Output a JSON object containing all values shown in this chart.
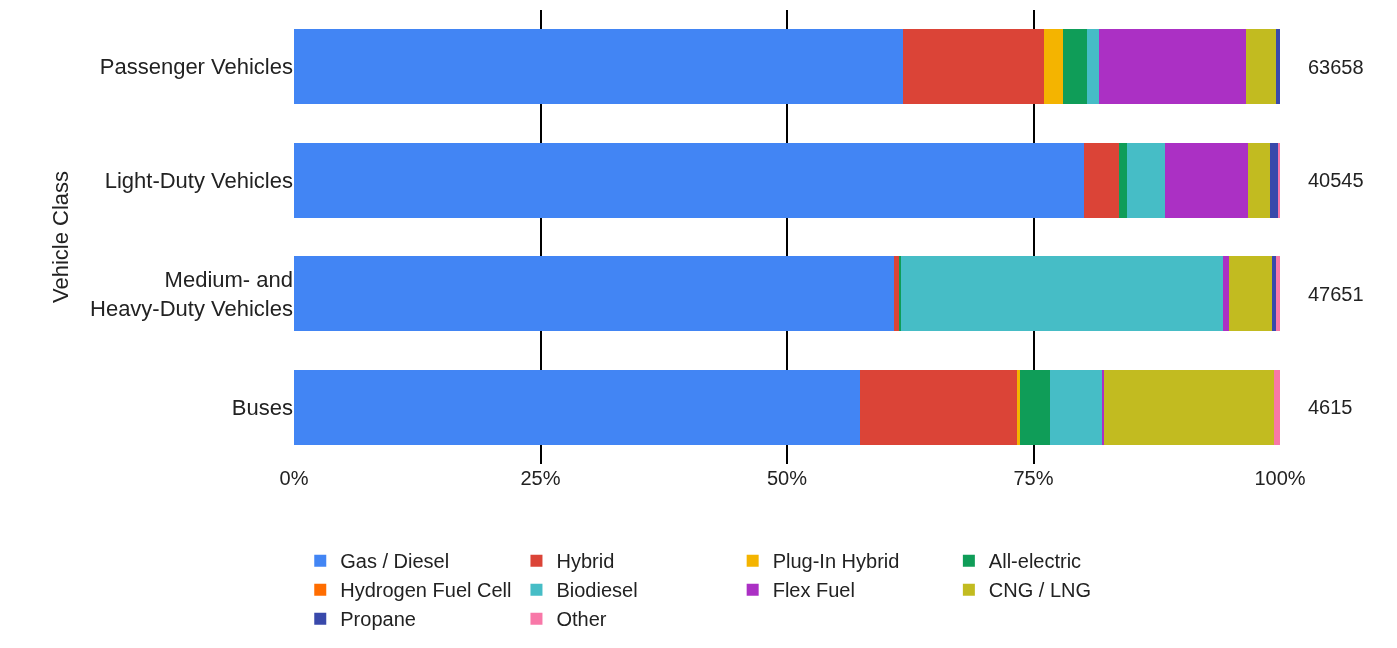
{
  "chart_data": {
    "type": "bar",
    "orientation": "horizontal",
    "stacked": true,
    "ylabel": "Vehicle Class",
    "categories": [
      "Passenger Vehicles",
      "Light-Duty Vehicles",
      "Medium- and Heavy-Duty Vehicles",
      "Buses"
    ],
    "series": [
      {
        "name": "Gas / Diesel",
        "color": "#4285f4",
        "values": [
          61.8,
          80.1,
          60.9,
          57.4
        ]
      },
      {
        "name": "Hybrid",
        "color": "#db4437",
        "values": [
          14.3,
          3.6,
          0.5,
          16.0
        ]
      },
      {
        "name": "Plug-In Hybrid",
        "color": "#f4b400",
        "values": [
          1.9,
          0,
          0,
          0.2
        ]
      },
      {
        "name": "All-electric",
        "color": "#0f9d58",
        "values": [
          2.4,
          0.8,
          0.2,
          3.1
        ]
      },
      {
        "name": "Hydrogen Fuel Cell",
        "color": "#ff6d00",
        "values": [
          0,
          0,
          0,
          0
        ]
      },
      {
        "name": "Biodiesel",
        "color": "#46bdc6",
        "values": [
          1.2,
          3.8,
          32.6,
          5.3
        ]
      },
      {
        "name": "Flex Fuel",
        "color": "#ab30c4",
        "values": [
          15.0,
          8.5,
          0.6,
          0.2
        ]
      },
      {
        "name": "CNG / LNG",
        "color": "#c2bb20",
        "values": [
          3.0,
          2.2,
          4.4,
          17.2
        ]
      },
      {
        "name": "Propane",
        "color": "#3949ab",
        "values": [
          0.4,
          0.8,
          0.4,
          0
        ]
      },
      {
        "name": "Other",
        "color": "#f878a8",
        "values": [
          0,
          0.2,
          0.4,
          0.6
        ]
      }
    ],
    "xlim": [
      0,
      100
    ],
    "xticks": [
      {
        "value": 0,
        "label": "0%"
      },
      {
        "value": 25,
        "label": "25%"
      },
      {
        "value": 50,
        "label": "50%"
      },
      {
        "value": 75,
        "label": "75%"
      },
      {
        "value": 100,
        "label": "100%"
      }
    ],
    "annotations": [
      "63658",
      "40545",
      "47651",
      "4615"
    ],
    "grid": "x",
    "legend": "bottom"
  }
}
